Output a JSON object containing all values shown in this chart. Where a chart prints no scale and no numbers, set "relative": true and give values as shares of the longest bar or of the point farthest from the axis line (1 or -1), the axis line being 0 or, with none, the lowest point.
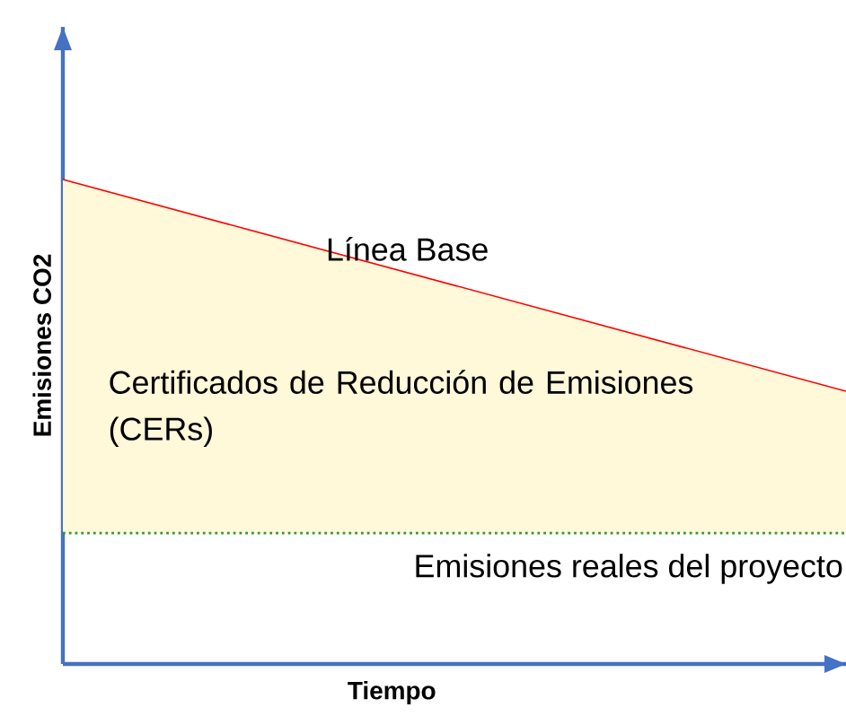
{
  "chart_data": {
    "type": "line",
    "relative": true,
    "xlabel": "Tiempo",
    "ylabel": "Emisiones CO2",
    "categories": [
      null,
      null
    ],
    "series": [
      {
        "name": "Línea Base",
        "color": "#ff0000",
        "values": [
          1,
          0.563
        ],
        "lower": [
          0.27,
          0.27
        ],
        "upper": [
          1,
          0.563
        ]
      },
      {
        "name": "Emisiones reales del proyecto",
        "color": "#339933",
        "line_style": "dotted",
        "values": [
          0.27,
          0.27
        ]
      }
    ],
    "annotations": [
      "Certificados de Reducción de Emisiones (CERs)"
    ]
  }
}
